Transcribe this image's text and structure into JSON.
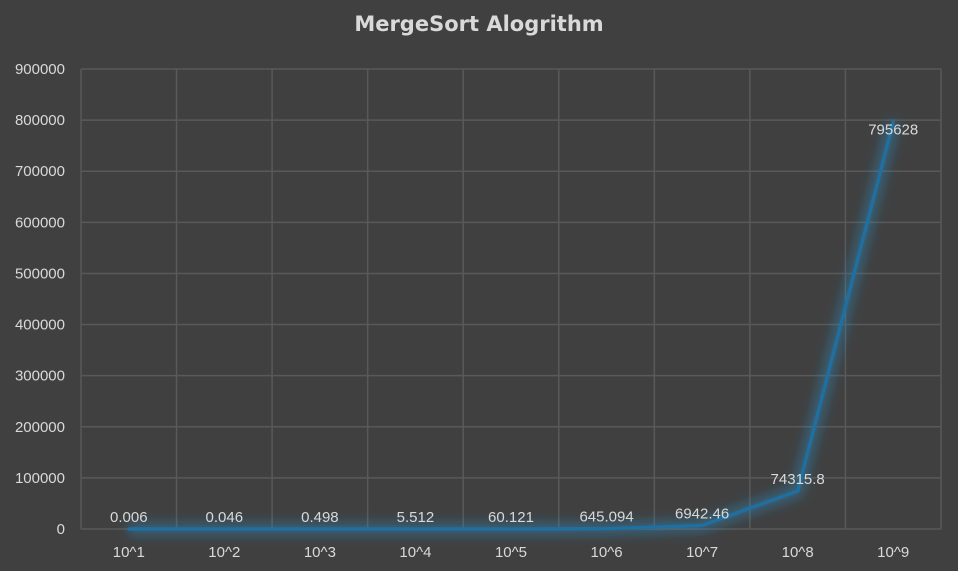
{
  "chart_data": {
    "type": "line",
    "title": "MergeSort Alogrithm",
    "xlabel": "",
    "ylabel": "",
    "categories": [
      "10^1",
      "10^2",
      "10^3",
      "10^4",
      "10^5",
      "10^6",
      "10^7",
      "10^8",
      "10^9"
    ],
    "series": [
      {
        "values": [
          0.006,
          0.046,
          0.498,
          5.512,
          60.121,
          645.094,
          6942.46,
          74315.8,
          795628
        ],
        "color": "#1f6fa0"
      }
    ],
    "data_labels": [
      "0.006",
      "0.046",
      "0.498",
      "5.512",
      "60.121",
      "645.094",
      "6942.46",
      "74315.8",
      "795628"
    ],
    "ylim": [
      0,
      900000
    ],
    "yticks": [
      "0",
      "100000",
      "200000",
      "300000",
      "400000",
      "500000",
      "600000",
      "700000",
      "800000",
      "900000"
    ],
    "grid": true,
    "legend": "none",
    "colors": {
      "background": "#404040",
      "gridline": "#595959",
      "text": "#d9d9d9"
    }
  }
}
